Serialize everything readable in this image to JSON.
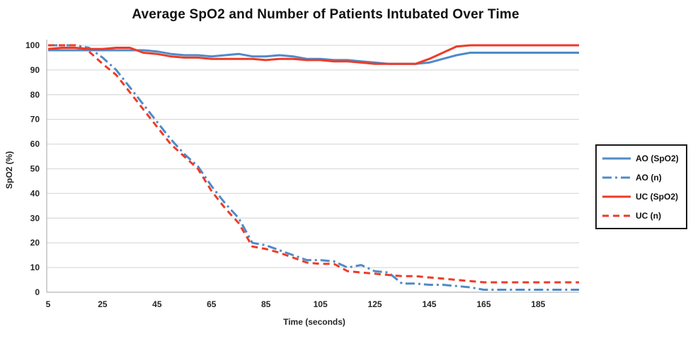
{
  "colors": {
    "ao": "#4e8bc8",
    "uc": "#ee3b28",
    "grid": "#dcdcdc",
    "axis": "#c0c0c0",
    "text": "#262626",
    "legend_border": "#1a1a1a"
  },
  "chart_data": {
    "type": "line",
    "title": "Average SpO2 and Number of Patients Intubated Over Time",
    "xlabel": "Time (seconds)",
    "ylabel": "SpO2 (%)",
    "xlim": [
      5,
      200
    ],
    "ylim": [
      0,
      100
    ],
    "x_ticks": [
      5,
      25,
      45,
      65,
      85,
      105,
      125,
      145,
      165,
      185
    ],
    "y_ticks": [
      0,
      10,
      20,
      30,
      40,
      50,
      60,
      70,
      80,
      90,
      100
    ],
    "grid": "horizontal",
    "legend_position": "right-outside",
    "x": [
      5,
      10,
      15,
      20,
      25,
      30,
      35,
      40,
      45,
      50,
      55,
      60,
      65,
      70,
      75,
      80,
      85,
      90,
      95,
      100,
      105,
      110,
      115,
      120,
      125,
      130,
      135,
      140,
      145,
      150,
      155,
      160,
      165,
      170,
      175,
      180,
      185,
      190,
      195,
      200
    ],
    "series": [
      {
        "name": "AO (SpO2)",
        "color_key": "ao",
        "style": "solid",
        "values": [
          98,
          98,
          98,
          98,
          98,
          98,
          98,
          98,
          97.5,
          96.5,
          96,
          96,
          95.5,
          96,
          96.5,
          95.5,
          95.5,
          96,
          95.5,
          94.5,
          94.5,
          94,
          94,
          93.5,
          93,
          92.5,
          92.5,
          92.5,
          93,
          94.5,
          96,
          97,
          97,
          97,
          97,
          97,
          97,
          97,
          97,
          97
        ]
      },
      {
        "name": "AO (n)",
        "color_key": "ao",
        "style": "dashdot",
        "values": [
          100,
          100,
          100,
          99,
          95,
          90,
          83,
          76,
          69,
          62,
          56,
          51,
          43,
          36,
          30,
          20,
          19,
          17,
          15,
          13,
          13,
          12.5,
          10,
          11,
          8.5,
          8,
          3.5,
          3.5,
          3,
          3,
          2.5,
          2,
          1,
          1,
          1,
          1,
          1,
          1,
          1,
          1
        ]
      },
      {
        "name": "UC (SpO2)",
        "color_key": "uc",
        "style": "solid",
        "values": [
          98.5,
          99,
          99,
          98.5,
          98.5,
          99,
          99,
          97,
          96.5,
          95.5,
          95,
          95,
          94.5,
          94.5,
          94.5,
          94.5,
          94,
          94.5,
          94.5,
          94,
          94,
          93.5,
          93.5,
          93,
          92.5,
          92.5,
          92.5,
          92.5,
          94.5,
          97,
          99.5,
          100,
          100,
          100,
          100,
          100,
          100,
          100,
          100,
          100
        ]
      },
      {
        "name": "UC (n)",
        "color_key": "uc",
        "style": "dashed",
        "values": [
          100,
          100,
          100,
          97.5,
          92.5,
          88,
          81,
          74,
          67,
          60,
          55,
          50,
          41,
          34,
          28,
          18.5,
          17.5,
          16,
          14,
          12,
          11.5,
          11.5,
          8.5,
          8,
          7.5,
          7,
          6.5,
          6.5,
          6,
          5.5,
          5,
          4.5,
          4,
          4,
          4,
          4,
          4,
          4,
          4,
          4
        ]
      }
    ]
  }
}
